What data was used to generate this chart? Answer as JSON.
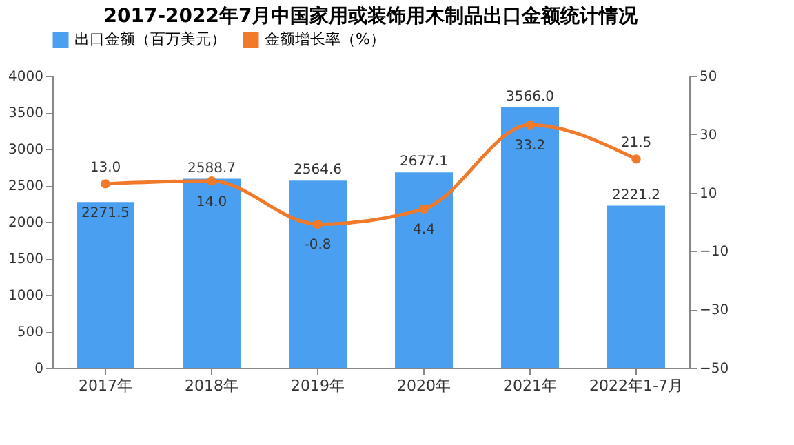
{
  "chart_data": {
    "type": "bar",
    "title": "2017-2022年7月中国家用或装饰用木制品出口金额统计情况",
    "categories": [
      "2017年",
      "2018年",
      "2019年",
      "2020年",
      "2021年",
      "2022年1-7月"
    ],
    "series": [
      {
        "name": "出口金额（百万美元）",
        "color": "#4a9ff0",
        "values": [
          2271.5,
          2588.7,
          2564.6,
          2677.1,
          3566.0,
          2221.2
        ],
        "value_labels": [
          "2271.5",
          "2588.7",
          "2564.6",
          "2677.1",
          "3566.0",
          "2221.2"
        ]
      },
      {
        "name": "金额增长率（%）",
        "type": "line",
        "axis": "y2",
        "color": "#f07a2a",
        "marker": "circle",
        "values": [
          13.0,
          14.0,
          -0.8,
          4.4,
          33.2,
          21.5
        ],
        "value_labels": [
          "13.0",
          "14.0",
          "-0.8",
          "4.4",
          "33.2",
          "21.5"
        ]
      }
    ],
    "ylim": [
      0,
      4000
    ],
    "yticks": [
      0,
      500,
      1000,
      1500,
      2000,
      2500,
      3000,
      3500,
      4000
    ],
    "y2lim": [
      -50,
      50
    ],
    "y2ticks": [
      -50,
      -30,
      -10,
      10,
      30,
      50
    ],
    "data_labels": true,
    "legend": "top",
    "grid": false
  }
}
